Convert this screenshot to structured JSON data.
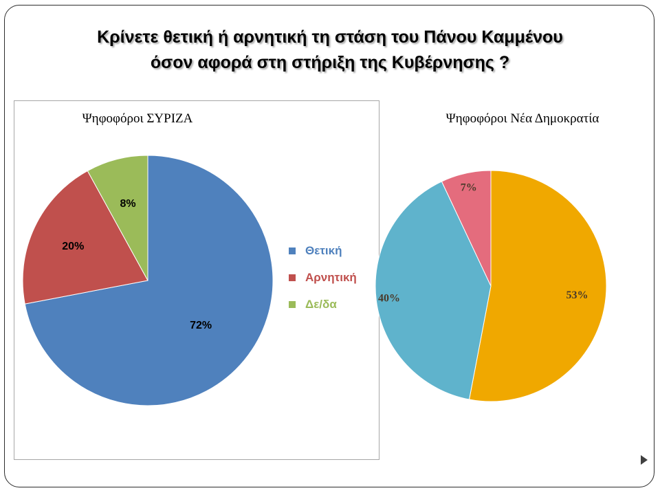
{
  "slide": {
    "title_line1": "Κρίνετε θετική ή αρνητική τη στάση του Πάνου Καμμένου",
    "title_line2": "όσον αφορά στη στήριξη της Κυβέρνησης  ?"
  },
  "chart_data": [
    {
      "type": "pie",
      "title": "Ψηφοφόροι ΣΥΡΙΖΑ",
      "categories": [
        "Θετική",
        "Αρνητική",
        "Δε/δα"
      ],
      "values": [
        72,
        20,
        8
      ],
      "labels": [
        "72%",
        "20%",
        "8%"
      ],
      "colors": [
        "#4F81BD",
        "#C0504D",
        "#9BBB59"
      ],
      "legend": "right",
      "start_angle_deg": 0,
      "direction": "clockwise"
    },
    {
      "type": "pie",
      "title": "Ψηφοφόροι Νέα Δημοκρατία",
      "categories": [
        "",
        "",
        ""
      ],
      "values": [
        53,
        40,
        7
      ],
      "labels": [
        "53%",
        "40%",
        "7%"
      ],
      "colors": [
        "#F0A800",
        "#5FB3CC",
        "#E46C7D"
      ],
      "legend": "none",
      "start_angle_deg": 0,
      "direction": "clockwise"
    }
  ]
}
